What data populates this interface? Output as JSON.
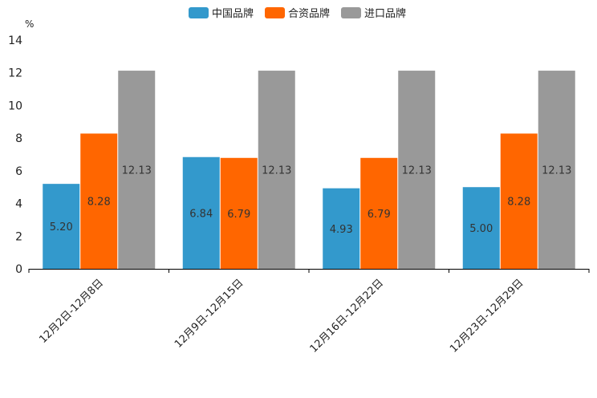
{
  "chart_data": {
    "type": "bar",
    "title": "",
    "xlabel": "",
    "ylabel": "%",
    "ylim": [
      0,
      14
    ],
    "yticks": [
      0,
      2,
      4,
      6,
      8,
      10,
      12,
      14
    ],
    "grid": false,
    "legend_position": "top-center",
    "categories": [
      "12月2日-12月8日",
      "12月9日-12月15日",
      "12月16日-12月22日",
      "12月23日-12月29日"
    ],
    "series": [
      {
        "name": "中国品牌",
        "color": "#3399cc",
        "values": [
          5.2,
          6.84,
          4.93,
          5.0
        ],
        "labels": [
          "5.20",
          "6.84",
          "4.93",
          "5.00"
        ]
      },
      {
        "name": "合资品牌",
        "color": "#ff6600",
        "values": [
          8.28,
          6.79,
          6.79,
          8.28
        ],
        "labels": [
          "8.28",
          "6.79",
          "6.79",
          "8.28"
        ]
      },
      {
        "name": "进口品牌",
        "color": "#999999",
        "values": [
          12.13,
          12.13,
          12.13,
          12.13
        ],
        "labels": [
          "12.13",
          "12.13",
          "12.13",
          "12.13"
        ]
      }
    ]
  }
}
